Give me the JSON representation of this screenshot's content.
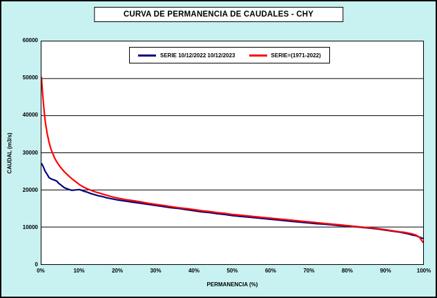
{
  "title": "CURVA DE PERMANENCIA DE CAUDALES - CHY",
  "colors": {
    "background": "#c8f2f2",
    "plot_background": "#ffffff",
    "grid": "#000000",
    "series_navy": "#000080",
    "series_red": "#ff0000"
  },
  "chart_data": {
    "type": "line",
    "title": "CURVA DE PERMANENCIA DE CAUDALES - CHY",
    "xlabel": "PERMANENCIA (%)",
    "ylabel": "CAUDAL (m3/s)",
    "xlim": [
      0,
      100
    ],
    "ylim": [
      0,
      60000
    ],
    "x_ticks": [
      "0%",
      "10%",
      "20%",
      "30%",
      "40%",
      "50%",
      "60%",
      "70%",
      "80%",
      "90%",
      "100%"
    ],
    "y_ticks": [
      0,
      10000,
      20000,
      30000,
      40000,
      50000,
      60000
    ],
    "grid": "horizontal",
    "legend_position": "top-center",
    "series": [
      {
        "name": "SERIE 10/12/2022 10/12/2023",
        "color": "#000080",
        "points": [
          [
            0,
            27200
          ],
          [
            0.5,
            26200
          ],
          [
            1,
            25000
          ],
          [
            1.5,
            24200
          ],
          [
            2,
            23300
          ],
          [
            2.5,
            23000
          ],
          [
            3,
            22800
          ],
          [
            3.5,
            22600
          ],
          [
            4,
            22400
          ],
          [
            4.5,
            21800
          ],
          [
            5,
            21400
          ],
          [
            6,
            20600
          ],
          [
            7,
            20200
          ],
          [
            8,
            19900
          ],
          [
            9,
            20000
          ],
          [
            10,
            20100
          ],
          [
            11,
            19700
          ],
          [
            12,
            19400
          ],
          [
            13,
            19000
          ],
          [
            14,
            18700
          ],
          [
            15,
            18400
          ],
          [
            16,
            18200
          ],
          [
            17,
            17900
          ],
          [
            18,
            17700
          ],
          [
            19,
            17500
          ],
          [
            20,
            17300
          ],
          [
            22,
            17000
          ],
          [
            24,
            16700
          ],
          [
            26,
            16400
          ],
          [
            28,
            16100
          ],
          [
            30,
            15800
          ],
          [
            32,
            15500
          ],
          [
            34,
            15200
          ],
          [
            36,
            15000
          ],
          [
            38,
            14700
          ],
          [
            40,
            14400
          ],
          [
            42,
            14100
          ],
          [
            44,
            13900
          ],
          [
            46,
            13600
          ],
          [
            48,
            13400
          ],
          [
            50,
            13100
          ],
          [
            52,
            12900
          ],
          [
            54,
            12700
          ],
          [
            56,
            12500
          ],
          [
            58,
            12300
          ],
          [
            60,
            12100
          ],
          [
            62,
            11900
          ],
          [
            64,
            11700
          ],
          [
            66,
            11500
          ],
          [
            68,
            11300
          ],
          [
            70,
            11100
          ],
          [
            72,
            10900
          ],
          [
            74,
            10800
          ],
          [
            76,
            10600
          ],
          [
            78,
            10400
          ],
          [
            80,
            10300
          ],
          [
            82,
            10100
          ],
          [
            84,
            9900
          ],
          [
            86,
            9700
          ],
          [
            88,
            9500
          ],
          [
            90,
            9200
          ],
          [
            92,
            8900
          ],
          [
            94,
            8600
          ],
          [
            95,
            8400
          ],
          [
            96,
            8200
          ],
          [
            97,
            7900
          ],
          [
            98,
            7700
          ],
          [
            99,
            7300
          ],
          [
            100,
            6900
          ]
        ]
      },
      {
        "name": "SERIE=(1971-2022)",
        "color": "#ff0000",
        "points": [
          [
            0,
            50500
          ],
          [
            0.3,
            46000
          ],
          [
            0.6,
            42500
          ],
          [
            1,
            38500
          ],
          [
            1.5,
            35200
          ],
          [
            2,
            32800
          ],
          [
            2.5,
            31000
          ],
          [
            3,
            29700
          ],
          [
            3.5,
            28500
          ],
          [
            4,
            27600
          ],
          [
            4.5,
            26800
          ],
          [
            5,
            26100
          ],
          [
            6,
            24900
          ],
          [
            7,
            23900
          ],
          [
            8,
            23000
          ],
          [
            9,
            22200
          ],
          [
            10,
            21400
          ],
          [
            11,
            20800
          ],
          [
            12,
            20300
          ],
          [
            13,
            19900
          ],
          [
            14,
            19500
          ],
          [
            15,
            19200
          ],
          [
            16,
            18900
          ],
          [
            17,
            18600
          ],
          [
            18,
            18300
          ],
          [
            19,
            18000
          ],
          [
            20,
            17800
          ],
          [
            22,
            17400
          ],
          [
            24,
            17100
          ],
          [
            26,
            16800
          ],
          [
            28,
            16400
          ],
          [
            30,
            16100
          ],
          [
            32,
            15800
          ],
          [
            34,
            15500
          ],
          [
            36,
            15200
          ],
          [
            38,
            15000
          ],
          [
            40,
            14700
          ],
          [
            42,
            14400
          ],
          [
            44,
            14200
          ],
          [
            46,
            13900
          ],
          [
            48,
            13700
          ],
          [
            50,
            13400
          ],
          [
            52,
            13200
          ],
          [
            54,
            13000
          ],
          [
            56,
            12800
          ],
          [
            58,
            12600
          ],
          [
            60,
            12400
          ],
          [
            62,
            12200
          ],
          [
            64,
            12000
          ],
          [
            66,
            11800
          ],
          [
            68,
            11600
          ],
          [
            70,
            11400
          ],
          [
            72,
            11200
          ],
          [
            74,
            11000
          ],
          [
            76,
            10800
          ],
          [
            78,
            10600
          ],
          [
            80,
            10400
          ],
          [
            82,
            10200
          ],
          [
            84,
            10000
          ],
          [
            86,
            9800
          ],
          [
            88,
            9600
          ],
          [
            90,
            9300
          ],
          [
            92,
            9000
          ],
          [
            94,
            8700
          ],
          [
            95,
            8600
          ],
          [
            96,
            8400
          ],
          [
            97,
            8200
          ],
          [
            98,
            7900
          ],
          [
            99,
            7300
          ],
          [
            100,
            5800
          ]
        ]
      }
    ]
  }
}
